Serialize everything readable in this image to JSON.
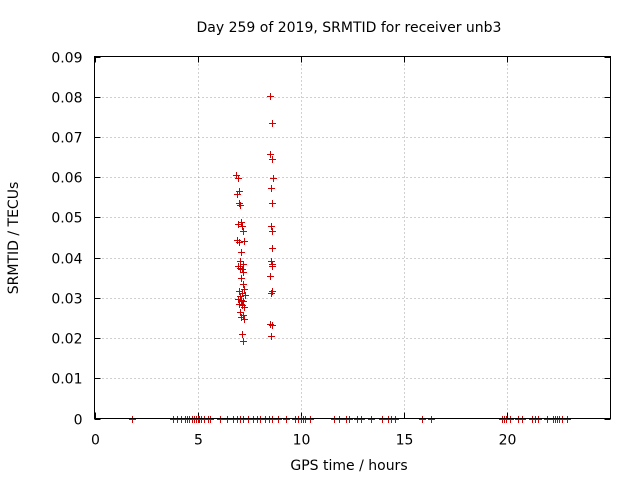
{
  "chart_data": {
    "type": "scatter",
    "title": "Day 259 of 2019, SRMTID for receiver unb3",
    "xlabel": "GPS time / hours",
    "ylabel": "SRMTID / TECUs",
    "xlim": [
      0,
      25
    ],
    "ylim": [
      0,
      0.09
    ],
    "grid": true,
    "marker": "+",
    "marker_color": "#d00000",
    "xticks": [
      0,
      5,
      10,
      15,
      20
    ],
    "xtick_labels": [
      "0",
      "5",
      "10",
      "15",
      "20"
    ],
    "yticks": [
      0,
      0.01,
      0.02,
      0.03,
      0.04,
      0.05,
      0.06,
      0.07,
      0.08,
      0.09
    ],
    "ytick_labels": [
      "0",
      "0.01",
      "0.02",
      "0.03",
      "0.04",
      "0.05",
      "0.06",
      "0.07",
      "0.08",
      "0.09"
    ],
    "series": [
      {
        "name": "SRMTID",
        "points": [
          [
            1.8,
            0
          ],
          [
            3.8,
            0
          ],
          [
            4.0,
            0
          ],
          [
            4.2,
            0
          ],
          [
            4.4,
            0
          ],
          [
            4.5,
            0
          ],
          [
            4.6,
            0
          ],
          [
            4.7,
            0
          ],
          [
            4.8,
            0
          ],
          [
            4.9,
            0
          ],
          [
            5.0,
            0
          ],
          [
            5.05,
            0
          ],
          [
            5.15,
            0
          ],
          [
            5.3,
            0
          ],
          [
            5.5,
            0
          ],
          [
            5.6,
            0
          ],
          [
            6.1,
            0
          ],
          [
            6.4,
            0
          ],
          [
            6.7,
            0
          ],
          [
            6.9,
            0
          ],
          [
            7.05,
            0
          ],
          [
            7.2,
            0
          ],
          [
            7.45,
            0
          ],
          [
            7.7,
            0
          ],
          [
            7.85,
            0
          ],
          [
            8.0,
            0
          ],
          [
            8.25,
            0
          ],
          [
            8.45,
            0
          ],
          [
            8.6,
            0
          ],
          [
            8.9,
            0
          ],
          [
            9.3,
            0
          ],
          [
            9.7,
            0
          ],
          [
            9.85,
            0
          ],
          [
            10.0,
            0
          ],
          [
            10.1,
            0
          ],
          [
            10.2,
            0
          ],
          [
            10.45,
            0
          ],
          [
            11.6,
            0
          ],
          [
            11.85,
            0
          ],
          [
            12.2,
            0
          ],
          [
            12.35,
            0
          ],
          [
            12.7,
            0
          ],
          [
            12.9,
            0
          ],
          [
            13.4,
            0
          ],
          [
            13.95,
            0
          ],
          [
            14.2,
            0
          ],
          [
            14.35,
            0
          ],
          [
            14.55,
            0
          ],
          [
            15.85,
            0
          ],
          [
            16.3,
            0
          ],
          [
            19.75,
            0
          ],
          [
            19.85,
            0
          ],
          [
            19.95,
            0
          ],
          [
            20.15,
            0
          ],
          [
            20.5,
            0
          ],
          [
            20.7,
            0
          ],
          [
            21.2,
            0
          ],
          [
            21.35,
            0
          ],
          [
            21.5,
            0
          ],
          [
            21.9,
            0
          ],
          [
            22.2,
            0
          ],
          [
            22.3,
            0
          ],
          [
            22.4,
            0
          ],
          [
            22.5,
            0
          ],
          [
            22.65,
            0
          ],
          [
            22.9,
            0
          ],
          [
            6.85,
            0.0605
          ],
          [
            6.95,
            0.0598
          ],
          [
            6.9,
            0.0558
          ],
          [
            7.0,
            0.0565
          ],
          [
            7.0,
            0.0535
          ],
          [
            7.05,
            0.0532
          ],
          [
            6.95,
            0.0484
          ],
          [
            7.1,
            0.0488
          ],
          [
            7.15,
            0.0478
          ],
          [
            7.2,
            0.0465
          ],
          [
            6.9,
            0.0445
          ],
          [
            7.0,
            0.044
          ],
          [
            7.25,
            0.0442
          ],
          [
            7.1,
            0.0415
          ],
          [
            7.05,
            0.0392
          ],
          [
            7.2,
            0.0385
          ],
          [
            6.95,
            0.0378
          ],
          [
            7.05,
            0.0375
          ],
          [
            7.15,
            0.0372
          ],
          [
            7.2,
            0.0365
          ],
          [
            7.1,
            0.035
          ],
          [
            7.2,
            0.0335
          ],
          [
            7.0,
            0.0318
          ],
          [
            7.25,
            0.0322
          ],
          [
            7.15,
            0.0312
          ],
          [
            7.05,
            0.0305
          ],
          [
            7.3,
            0.0308
          ],
          [
            6.95,
            0.0298
          ],
          [
            7.1,
            0.0295
          ],
          [
            7.2,
            0.0292
          ],
          [
            7.0,
            0.0285
          ],
          [
            7.15,
            0.0282
          ],
          [
            7.25,
            0.0278
          ],
          [
            7.05,
            0.0265
          ],
          [
            7.2,
            0.0258
          ],
          [
            7.1,
            0.0252
          ],
          [
            7.25,
            0.0248
          ],
          [
            7.15,
            0.021
          ],
          [
            7.2,
            0.0192
          ],
          [
            8.5,
            0.0802
          ],
          [
            8.6,
            0.0735
          ],
          [
            8.5,
            0.0658
          ],
          [
            8.6,
            0.0645
          ],
          [
            8.65,
            0.0598
          ],
          [
            8.55,
            0.0572
          ],
          [
            8.6,
            0.0535
          ],
          [
            8.55,
            0.0478
          ],
          [
            8.6,
            0.0465
          ],
          [
            8.62,
            0.0425
          ],
          [
            8.55,
            0.0392
          ],
          [
            8.6,
            0.0385
          ],
          [
            8.58,
            0.0378
          ],
          [
            8.5,
            0.0355
          ],
          [
            8.6,
            0.0318
          ],
          [
            8.55,
            0.0312
          ],
          [
            8.5,
            0.0235
          ],
          [
            8.6,
            0.0232
          ],
          [
            8.55,
            0.0205
          ]
        ]
      }
    ]
  }
}
